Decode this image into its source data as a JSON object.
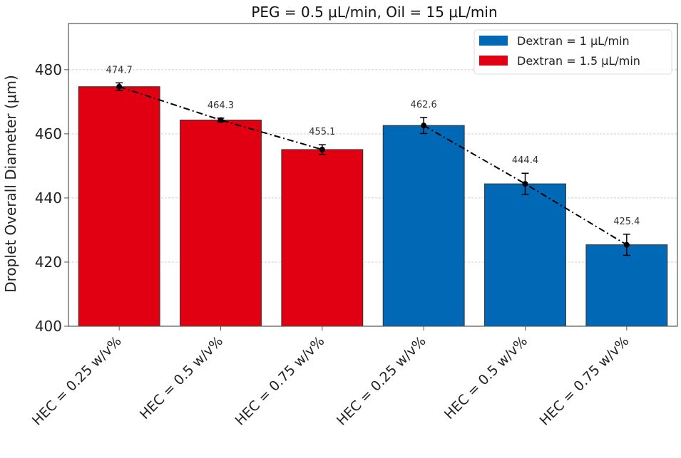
{
  "chart_data": {
    "type": "bar",
    "title": "PEG = 0.5 μL/min, Oil = 15 μL/min",
    "xlabel": "",
    "ylabel": "Droplet Overall Diameter (μm)",
    "ylim": [
      400,
      494.4
    ],
    "yticks": [
      400,
      420,
      440,
      460,
      480
    ],
    "grid": true,
    "legend_position": "top-right",
    "categories": [
      "HEC = 0.25 w/v%",
      "HEC = 0.5 w/v%",
      "HEC = 0.75 w/v%",
      "HEC = 0.25 w/v%",
      "HEC = 0.5 w/v%",
      "HEC = 0.75 w/v%"
    ],
    "values": [
      474.7,
      464.3,
      455.1,
      462.6,
      444.4,
      425.4
    ],
    "errors": [
      1.2,
      0.6,
      1.5,
      2.5,
      3.3,
      3.3
    ],
    "bar_series": [
      0,
      0,
      0,
      1,
      1,
      1
    ],
    "data_labels": [
      "474.7",
      "464.3",
      "455.1",
      "462.6",
      "444.4",
      "425.4"
    ],
    "series": [
      {
        "name": "Dextran = 1.5 μL/min",
        "color": "#e00012",
        "indices": [
          0,
          1,
          2
        ]
      },
      {
        "name": "Dextran = 1 μL/min",
        "color": "#0068b4",
        "indices": [
          3,
          4,
          5
        ]
      }
    ],
    "legend": [
      {
        "label": "Dextran = 1 μL/min",
        "color": "#0068b4"
      },
      {
        "label": "Dextran = 1.5 μL/min",
        "color": "#e00012"
      }
    ],
    "trend_line": {
      "style": "dash-dot",
      "color": "#000000",
      "groups": [
        [
          0,
          1,
          2
        ],
        [
          3,
          4,
          5
        ]
      ]
    }
  }
}
